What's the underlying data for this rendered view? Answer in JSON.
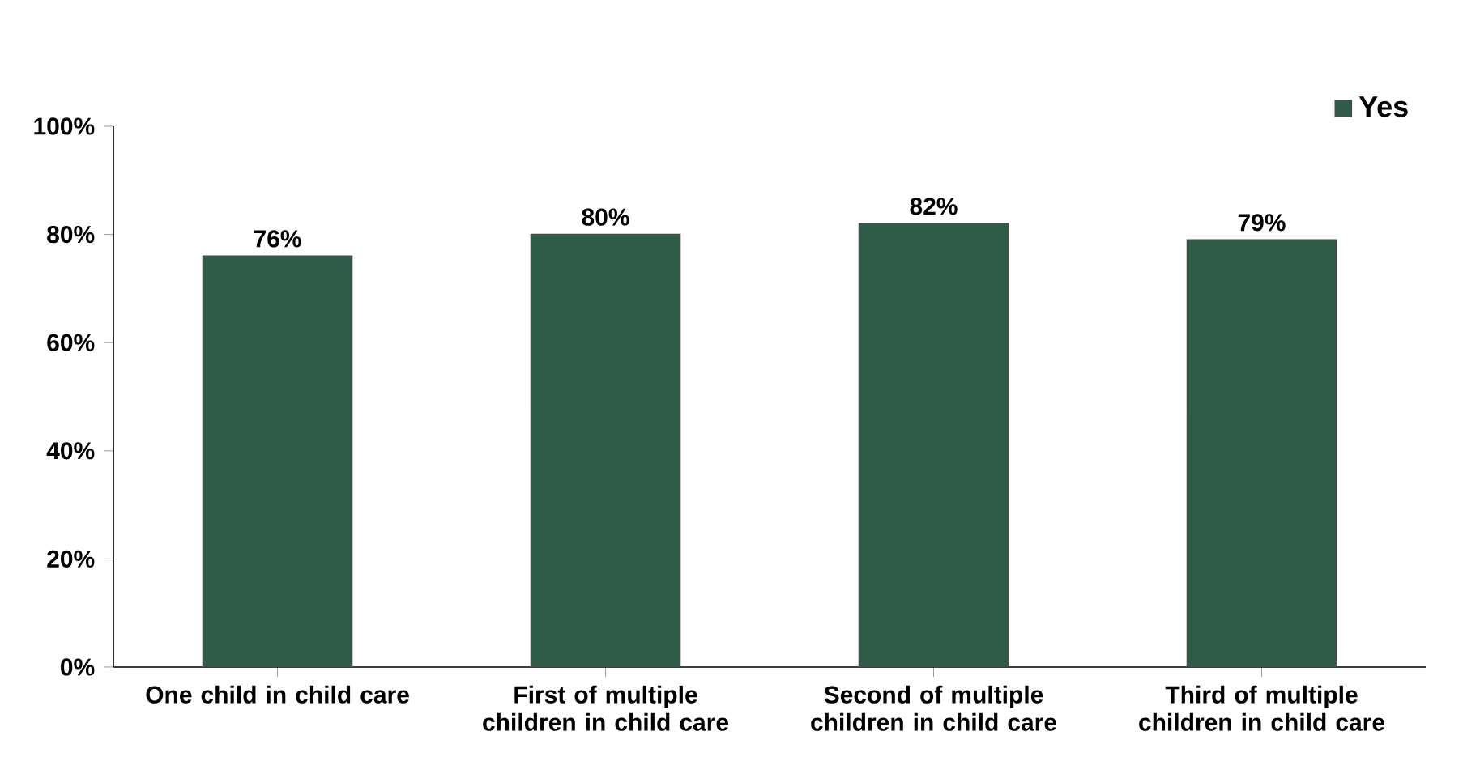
{
  "chart_data": {
    "type": "bar",
    "categories": [
      "One child in child care",
      "First of multiple children in child care",
      "Second of multiple children in child care",
      "Third of multiple children in child care"
    ],
    "series": [
      {
        "name": "Yes",
        "color": "#2f5c48",
        "values": [
          76,
          80,
          82,
          79
        ],
        "value_labels": [
          "76%",
          "80%",
          "82%",
          "79%"
        ]
      }
    ],
    "ylim": [
      0,
      100
    ],
    "yticks": [
      {
        "value": 0,
        "label": "0%"
      },
      {
        "value": 20,
        "label": "20%"
      },
      {
        "value": 40,
        "label": "40%"
      },
      {
        "value": 60,
        "label": "60%"
      },
      {
        "value": 80,
        "label": "80%"
      },
      {
        "value": 100,
        "label": "100%"
      }
    ],
    "legend": "top right",
    "grid": false
  }
}
